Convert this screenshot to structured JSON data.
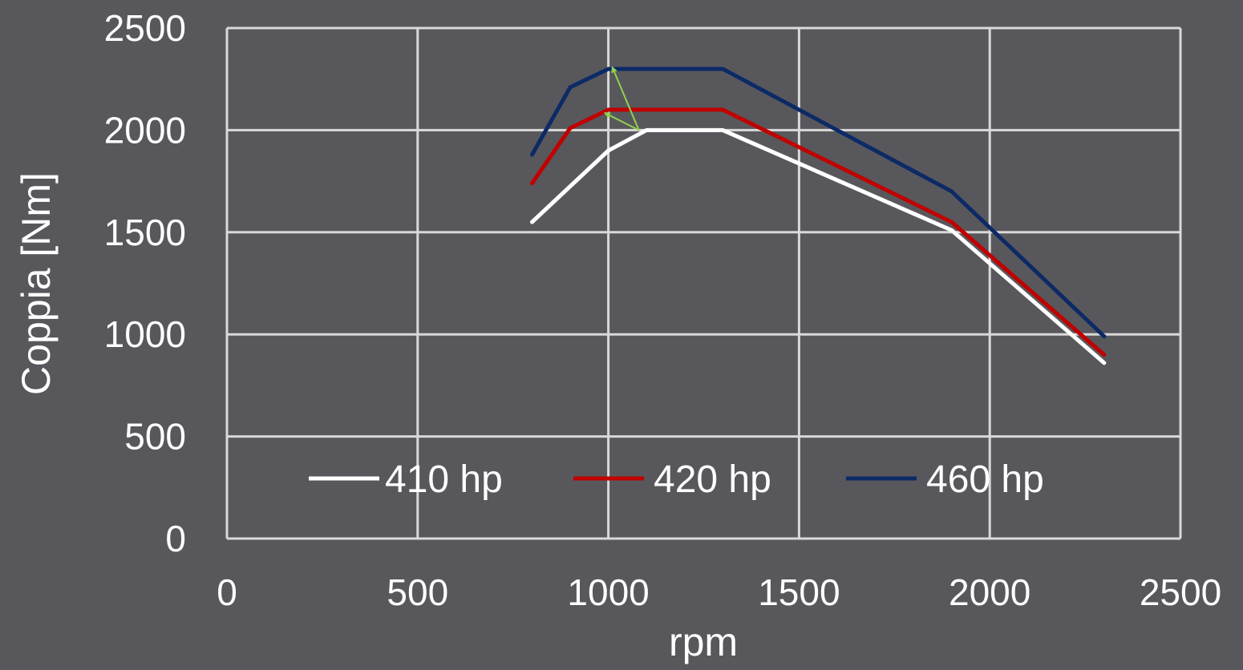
{
  "chart_data": {
    "type": "line",
    "title": "",
    "xlabel": "rpm",
    "ylabel": "Coppia [Nm]",
    "xlim": [
      0,
      2500
    ],
    "ylim": [
      0,
      2500
    ],
    "x_ticks": [
      "0",
      "500",
      "1000",
      "1500",
      "2000",
      "2500"
    ],
    "y_ticks": [
      "0",
      "500",
      "1000",
      "1500",
      "2000",
      "2500"
    ],
    "grid": true,
    "legend_position": "bottom-inside",
    "series": [
      {
        "name": "410 hp",
        "color": "#ffffff",
        "x": [
          800,
          1000,
          1100,
          1300,
          1900,
          2300
        ],
        "y": [
          1550,
          1900,
          2000,
          2000,
          1510,
          860
        ]
      },
      {
        "name": "420 hp",
        "color": "#c00000",
        "x": [
          800,
          900,
          1000,
          1300,
          1900,
          2300
        ],
        "y": [
          1740,
          2010,
          2100,
          2100,
          1550,
          900
        ]
      },
      {
        "name": "460 hp",
        "color": "#0d2a66",
        "x": [
          800,
          900,
          1000,
          1300,
          1900,
          2300
        ],
        "y": [
          1880,
          2210,
          2300,
          2300,
          1700,
          990
        ]
      }
    ],
    "annotations": [
      {
        "type": "arrow",
        "color": "#8fd14f",
        "from": [
          1080,
          2000
        ],
        "to": [
          1010,
          2310
        ]
      },
      {
        "type": "arrow",
        "color": "#8fd14f",
        "from": [
          1080,
          2000
        ],
        "to": [
          990,
          2085
        ]
      }
    ]
  }
}
